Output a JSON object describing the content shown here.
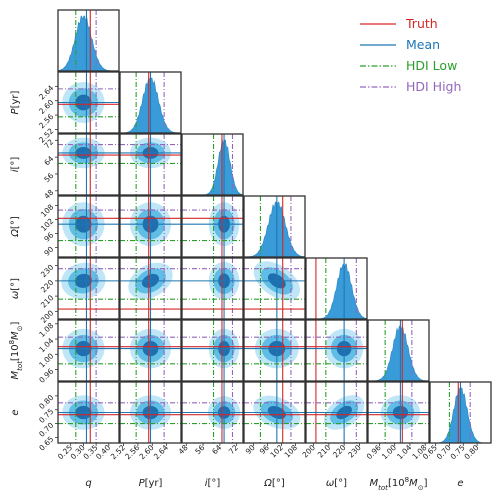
{
  "chart_data": {
    "type": "corner",
    "parameters": [
      {
        "label": "q",
        "range": [
          0.2,
          0.44
        ],
        "ticks": [
          "0.25",
          "0.30",
          "0.35",
          "0.40"
        ],
        "truth": 0.327,
        "mean": 0.312,
        "hdi_low": 0.27,
        "hdi_high": 0.35,
        "peak": 0.3,
        "sd": 0.032
      },
      {
        "label": "P[yr]",
        "range": [
          2.51,
          2.68
        ],
        "ticks": [
          "2.52",
          "2.56",
          "2.60",
          "2.64"
        ],
        "truth": 2.59,
        "mean": 2.595,
        "hdi_low": 2.555,
        "hdi_high": 2.633,
        "peak": 2.595,
        "sd": 0.022
      },
      {
        "label": "i[°]",
        "range": [
          46,
          75
        ],
        "ticks": [
          "48",
          "56",
          "64",
          "72"
        ],
        "truth": 65,
        "mean": 66,
        "hdi_low": 61,
        "hdi_high": 70,
        "peak": 66,
        "sd": 2.8
      },
      {
        "label": "Ω[°]",
        "range": [
          86,
          112
        ],
        "ticks": [
          "90",
          "96",
          "102",
          "108"
        ],
        "truth": 102.5,
        "mean": 100,
        "hdi_low": 93,
        "hdi_high": 106,
        "peak": 100,
        "sd": 3.6
      },
      {
        "label": "ω[°]",
        "range": [
          195,
          235
        ],
        "ticks": [
          "200",
          "210",
          "220",
          "230"
        ],
        "truth": 201.5,
        "mean": 220,
        "hdi_low": 208,
        "hdi_high": 228,
        "peak": 220,
        "sd": 4.8
      },
      {
        "label": "M_tot[10^8 M_⊙]",
        "range": [
          0.93,
          1.09
        ],
        "ticks": [
          "0.96",
          "1.00",
          "1.04",
          "1.08"
        ],
        "truth": 1.02,
        "mean": 1.015,
        "hdi_low": 0.975,
        "hdi_high": 1.045,
        "peak": 1.015,
        "sd": 0.02
      },
      {
        "label": "e",
        "range": [
          0.63,
          0.85
        ],
        "ticks": [
          "0.65",
          "0.70",
          "0.75",
          "0.80"
        ],
        "truth": 0.732,
        "mean": 0.74,
        "hdi_low": 0.7,
        "hdi_high": 0.775,
        "peak": 0.74,
        "sd": 0.024
      }
    ],
    "legend": {
      "placement": "top-right",
      "entries": [
        {
          "name": "Truth",
          "color": "#d62728",
          "style": "solid"
        },
        {
          "name": "Mean",
          "color": "#1f77b4",
          "style": "solid"
        },
        {
          "name": "HDI Low",
          "color": "#2ca02c",
          "style": "dashdot"
        },
        {
          "name": "HDI High",
          "color": "#9467bd",
          "style": "dashdot"
        }
      ]
    },
    "y_axis_labels": [
      "P[yr]",
      "i[°]",
      "Ω[°]",
      "ω[°]",
      "M_tot[10^8 M_⊙]",
      "e"
    ],
    "x_axis_labels": [
      "q",
      "P[yr]",
      "i[°]",
      "Ω[°]",
      "ω[°]",
      "M_tot[10^8 M_⊙]",
      "e"
    ]
  },
  "colors": {
    "fill_outer": "#bfe6f7",
    "fill_mid": "#5fbde6",
    "fill_inner": "#1f6faf",
    "hist": "#3a9bd9",
    "truth": "#d62728",
    "mean": "#1f77b4",
    "hdi_low": "#2ca02c",
    "hdi_high": "#9467bd"
  }
}
